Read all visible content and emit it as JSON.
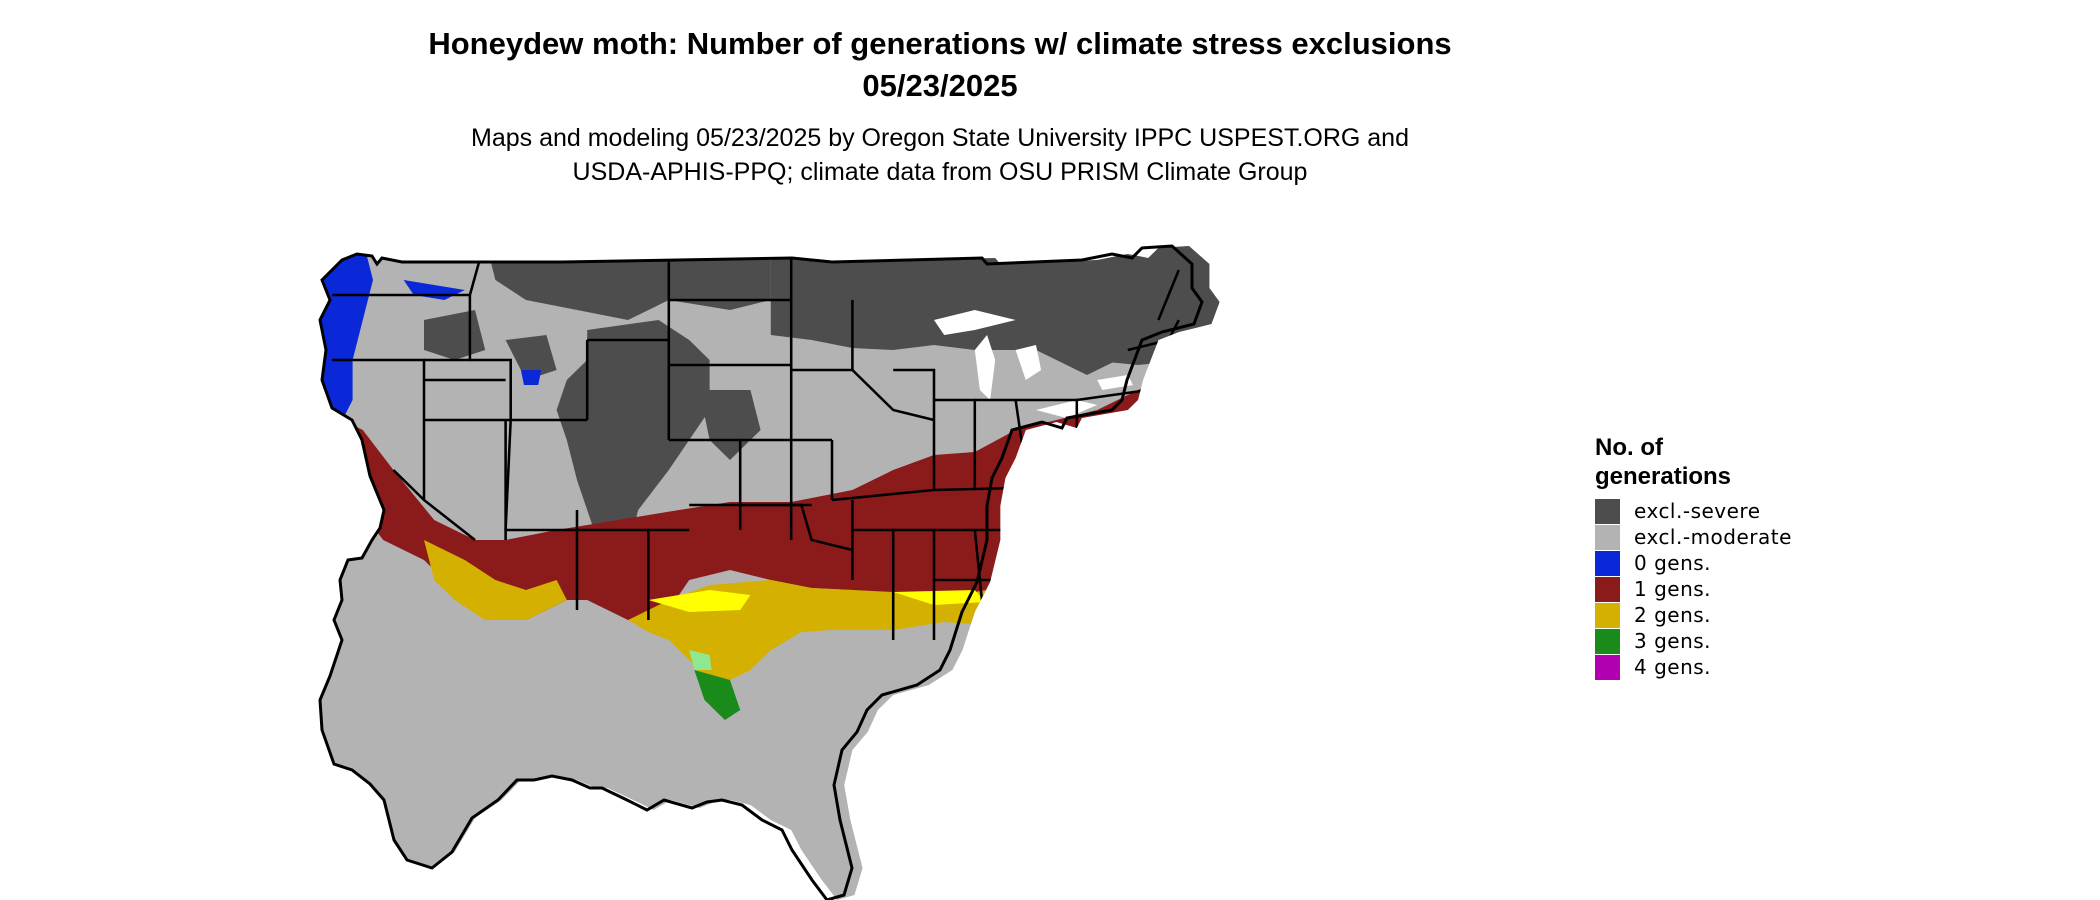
{
  "title_line1": "Honeydew moth: Number of generations w/ climate stress exclusions",
  "title_line2": "05/23/2025",
  "subtitle_line1": "Maps and modeling 05/23/2025 by Oregon State University IPPC USPEST.ORG and",
  "subtitle_line2": "USDA-APHIS-PPQ; climate data from OSU PRISM Climate Group",
  "legend": {
    "title_line1": "No. of",
    "title_line2": "generations",
    "items": [
      {
        "label": "excl.-severe",
        "color": "#4d4d4d"
      },
      {
        "label": "excl.-moderate",
        "color": "#b3b3b3"
      },
      {
        "label": "0 gens.",
        "color": "#0a28d8"
      },
      {
        "label": "1 gens.",
        "color": "#8b1a1a"
      },
      {
        "label": "2 gens.",
        "color": "#d4b000"
      },
      {
        "label": "3 gens.",
        "color": "#1a8a1a"
      },
      {
        "label": "4 gens.",
        "color": "#b000b0"
      }
    ]
  }
}
